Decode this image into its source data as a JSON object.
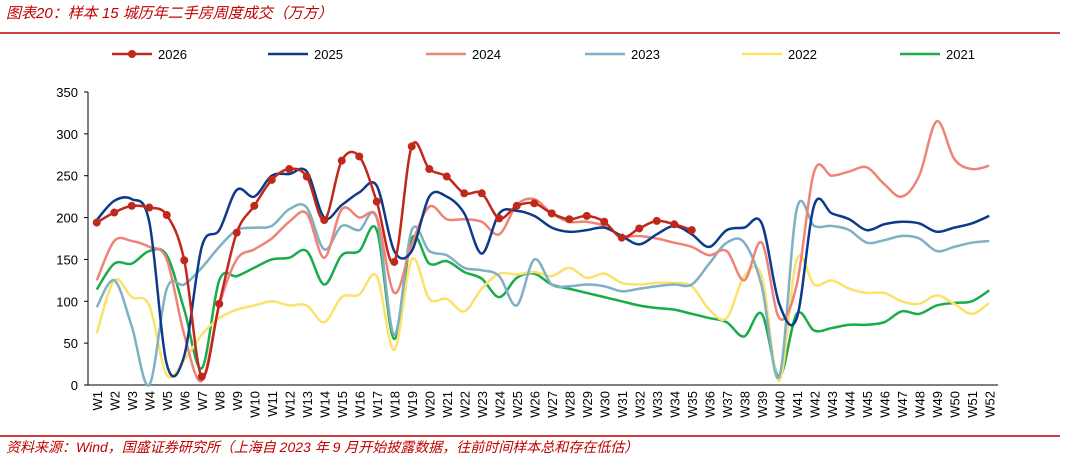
{
  "chart_data": {
    "type": "line",
    "title": "图表20：样本 15 城历年二手房周度成交（万方）",
    "source": "资料来源：Wind，国盛证券研究所（上海自 2023 年 9 月开始披露数据，往前时间样本总和存在低估）",
    "categories": [
      "W1",
      "W2",
      "W3",
      "W4",
      "W5",
      "W6",
      "W7",
      "W8",
      "W9",
      "W10",
      "W11",
      "W12",
      "W13",
      "W14",
      "W15",
      "W16",
      "W17",
      "W18",
      "W19",
      "W20",
      "W21",
      "W22",
      "W23",
      "W24",
      "W25",
      "W26",
      "W27",
      "W28",
      "W29",
      "W30",
      "W31",
      "W32",
      "W33",
      "W34",
      "W35",
      "W36",
      "W37",
      "W38",
      "W39",
      "W40",
      "W41",
      "W42",
      "W43",
      "W44",
      "W45",
      "W46",
      "W47",
      "W48",
      "W49",
      "W50",
      "W51",
      "W52"
    ],
    "ylim": [
      0,
      350
    ],
    "yticks": [
      0,
      50,
      100,
      150,
      200,
      250,
      300,
      350
    ],
    "series": [
      {
        "name": "2026",
        "color": "#c0281b",
        "markers": true,
        "values": [
          194,
          206,
          214,
          212,
          203,
          149,
          10,
          97,
          182,
          214,
          245,
          258,
          249,
          197,
          268,
          273,
          219,
          147,
          285,
          258,
          249,
          229,
          229,
          199,
          214,
          217,
          205,
          198,
          202,
          195,
          176,
          187,
          196,
          192,
          185,
          null,
          null,
          null,
          null,
          null,
          null,
          null,
          null,
          null,
          null,
          null,
          null,
          null,
          null,
          null,
          null,
          null
        ]
      },
      {
        "name": "2025",
        "color": "#0d3a8a",
        "values": [
          197,
          220,
          222,
          195,
          25,
          35,
          165,
          185,
          233,
          225,
          250,
          252,
          255,
          200,
          215,
          230,
          238,
          160,
          160,
          225,
          225,
          205,
          157,
          205,
          208,
          202,
          188,
          183,
          185,
          188,
          178,
          168,
          180,
          190,
          180,
          165,
          185,
          188,
          193,
          97,
          80,
          215,
          205,
          198,
          185,
          192,
          195,
          193,
          183,
          188,
          193,
          202
        ]
      },
      {
        "name": "2024",
        "color": "#ee8478",
        "values": [
          125,
          172,
          172,
          165,
          150,
          60,
          5,
          95,
          150,
          162,
          175,
          195,
          205,
          152,
          210,
          200,
          200,
          110,
          168,
          213,
          198,
          198,
          195,
          180,
          215,
          222,
          205,
          195,
          195,
          190,
          178,
          178,
          175,
          170,
          165,
          155,
          160,
          125,
          170,
          80,
          120,
          255,
          250,
          255,
          260,
          240,
          225,
          250,
          315,
          270,
          258,
          262
        ]
      },
      {
        "name": "2023",
        "color": "#7fb0c4",
        "values": [
          93,
          125,
          70,
          0,
          115,
          120,
          140,
          165,
          185,
          188,
          190,
          210,
          212,
          162,
          190,
          185,
          200,
          60,
          185,
          160,
          155,
          140,
          137,
          130,
          95,
          150,
          120,
          118,
          120,
          118,
          112,
          115,
          118,
          120,
          120,
          145,
          170,
          170,
          118,
          10,
          210,
          190,
          190,
          185,
          170,
          173,
          178,
          175,
          160,
          165,
          170,
          172
        ]
      },
      {
        "name": "2022",
        "color": "#fbe26b",
        "values": [
          62,
          125,
          105,
          95,
          12,
          30,
          60,
          80,
          90,
          95,
          100,
          95,
          95,
          75,
          105,
          108,
          130,
          42,
          150,
          103,
          103,
          88,
          115,
          133,
          132,
          135,
          130,
          140,
          128,
          133,
          122,
          120,
          122,
          122,
          118,
          90,
          80,
          130,
          130,
          5,
          150,
          120,
          125,
          115,
          110,
          110,
          100,
          97,
          107,
          97,
          85,
          98
        ]
      },
      {
        "name": "2021",
        "color": "#1aab4b",
        "values": [
          114,
          145,
          145,
          160,
          155,
          90,
          20,
          125,
          130,
          140,
          150,
          152,
          160,
          120,
          155,
          160,
          185,
          55,
          175,
          145,
          148,
          135,
          127,
          105,
          128,
          133,
          120,
          115,
          110,
          105,
          100,
          95,
          92,
          90,
          85,
          80,
          75,
          58,
          85,
          10,
          85,
          65,
          68,
          72,
          72,
          75,
          88,
          85,
          95,
          98,
          100,
          113
        ]
      }
    ]
  }
}
